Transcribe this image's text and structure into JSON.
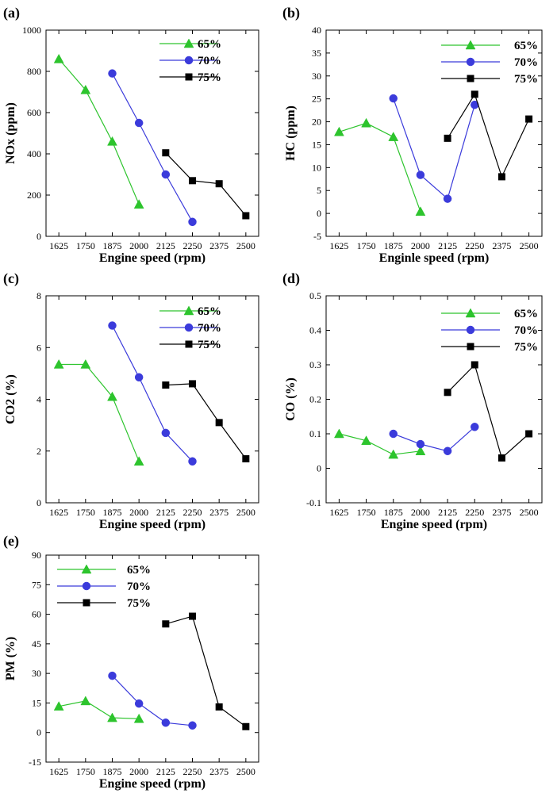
{
  "colors": {
    "s65": "#2dc42d",
    "s70": "#3b3bdb",
    "s75": "#000000"
  },
  "chart_data": [
    {
      "type": "line",
      "panel_label": "(a)",
      "xlabel": "Engine speed (rpm)",
      "ylabel": "NOx (ppm)",
      "x_ticks": [
        "1625",
        "1750",
        "1875",
        "2000",
        "2125",
        "2250",
        "2375",
        "2500"
      ],
      "ylim": [
        0,
        1000
      ],
      "y_ticks": [
        0,
        200,
        400,
        600,
        800,
        1000
      ],
      "legend": "top-right",
      "series": [
        {
          "name": "65%",
          "marker": "triangle",
          "x": [
            1625,
            1750,
            1875,
            2000
          ],
          "y": [
            860,
            710,
            460,
            155
          ]
        },
        {
          "name": "70%",
          "marker": "circle",
          "x": [
            1875,
            2000,
            2125,
            2250
          ],
          "y": [
            790,
            550,
            300,
            70
          ]
        },
        {
          "name": "75%",
          "marker": "square",
          "x": [
            2125,
            2250,
            2375,
            2500
          ],
          "y": [
            405,
            270,
            255,
            100
          ]
        }
      ]
    },
    {
      "type": "line",
      "panel_label": "(b)",
      "xlabel": "Enginle speed (rpm)",
      "ylabel": "HC (ppm)",
      "x_ticks": [
        "1625",
        "1750",
        "1875",
        "2000",
        "2125",
        "2250",
        "2375",
        "2500"
      ],
      "ylim": [
        -5,
        40
      ],
      "y_ticks": [
        -5,
        0,
        5,
        10,
        15,
        20,
        25,
        30,
        35,
        40
      ],
      "legend": "top-right",
      "series": [
        {
          "name": "65%",
          "marker": "triangle",
          "x": [
            1625,
            1750,
            1875,
            2000
          ],
          "y": [
            17.8,
            19.7,
            16.7,
            0.4
          ]
        },
        {
          "name": "70%",
          "marker": "circle",
          "x": [
            1875,
            2000,
            2125,
            2250
          ],
          "y": [
            25.1,
            8.4,
            3.2,
            23.7
          ]
        },
        {
          "name": "75%",
          "marker": "square",
          "x": [
            2125,
            2250,
            2375,
            2500
          ],
          "y": [
            16.4,
            26.0,
            8.0,
            20.6
          ]
        }
      ]
    },
    {
      "type": "line",
      "panel_label": "(c)",
      "xlabel": "Engine speed (rpm)",
      "ylabel": "CO2 (%)",
      "x_ticks": [
        "1625",
        "1750",
        "1875",
        "2000",
        "2125",
        "2250",
        "2375",
        "2500"
      ],
      "ylim": [
        0,
        8
      ],
      "y_ticks": [
        0,
        2,
        4,
        6,
        8
      ],
      "legend": "top-right",
      "series": [
        {
          "name": "65%",
          "marker": "triangle",
          "x": [
            1625,
            1750,
            1875,
            2000
          ],
          "y": [
            5.35,
            5.35,
            4.1,
            1.6
          ]
        },
        {
          "name": "70%",
          "marker": "circle",
          "x": [
            1875,
            2000,
            2125,
            2250
          ],
          "y": [
            6.85,
            4.85,
            2.7,
            1.6
          ]
        },
        {
          "name": "75%",
          "marker": "square",
          "x": [
            2125,
            2250,
            2375,
            2500
          ],
          "y": [
            4.55,
            4.6,
            3.1,
            1.7
          ]
        }
      ]
    },
    {
      "type": "line",
      "panel_label": "(d)",
      "xlabel": "Engine speed (rpm)",
      "ylabel": "CO (%)",
      "x_ticks": [
        "1625",
        "1750",
        "1875",
        "2000",
        "2125",
        "2250",
        "2375",
        "2500"
      ],
      "ylim": [
        -0.1,
        0.5
      ],
      "y_ticks": [
        -0.1,
        0,
        0.1,
        0.2,
        0.3,
        0.4,
        0.5
      ],
      "legend": "top-right",
      "series": [
        {
          "name": "65%",
          "marker": "triangle",
          "x": [
            1625,
            1750,
            1875,
            2000
          ],
          "y": [
            0.1,
            0.08,
            0.04,
            0.05
          ]
        },
        {
          "name": "70%",
          "marker": "circle",
          "x": [
            1875,
            2000,
            2125,
            2250
          ],
          "y": [
            0.1,
            0.07,
            0.05,
            0.12
          ]
        },
        {
          "name": "75%",
          "marker": "square",
          "x": [
            2125,
            2250,
            2375,
            2500
          ],
          "y": [
            0.22,
            0.3,
            0.03,
            0.1
          ]
        }
      ]
    },
    {
      "type": "line",
      "panel_label": "(e)",
      "xlabel": "Engine speed (rpm)",
      "ylabel": "PM (%)",
      "x_ticks": [
        "1625",
        "1750",
        "1875",
        "2000",
        "2125",
        "2250",
        "2375",
        "2500"
      ],
      "ylim": [
        -15,
        90
      ],
      "y_ticks": [
        -15,
        0,
        15,
        30,
        45,
        60,
        75,
        90
      ],
      "legend": "top-left",
      "series": [
        {
          "name": "65%",
          "marker": "triangle",
          "x": [
            1625,
            1750,
            1875,
            2000
          ],
          "y": [
            13.3,
            16.0,
            7.5,
            7.0
          ]
        },
        {
          "name": "70%",
          "marker": "circle",
          "x": [
            1875,
            2000,
            2125,
            2250
          ],
          "y": [
            28.8,
            14.7,
            5.0,
            3.6
          ]
        },
        {
          "name": "75%",
          "marker": "square",
          "x": [
            2125,
            2250,
            2375,
            2500
          ],
          "y": [
            55.1,
            59.0,
            13.0,
            3.0
          ]
        }
      ]
    }
  ]
}
